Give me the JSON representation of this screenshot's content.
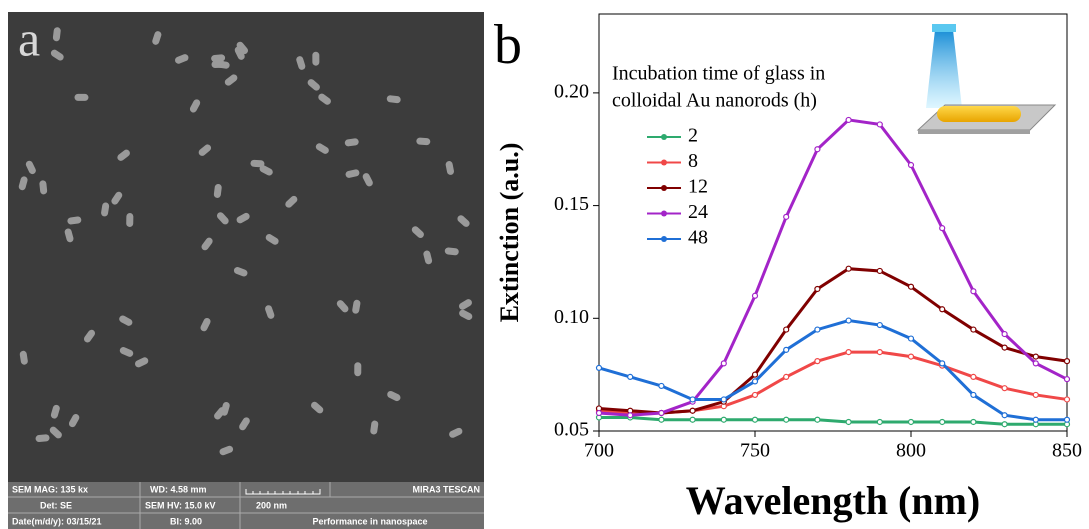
{
  "panel_labels": [
    "a",
    "b"
  ],
  "sem_info": [
    [
      "SEM MAG: 135 kx",
      "WD: 4.58 mm",
      "MIRA3 TESCAN"
    ],
    [
      "Det: SE",
      "SEM HV: 15.0 kV",
      "200 nm"
    ],
    [
      "Date(m/d/y): 03/15/21",
      "BI: 9.00",
      "Performance in nanospace"
    ]
  ],
  "chart_data": {
    "type": "line",
    "x_label": "Wavelength (nm)",
    "y_label": "Extinction (a.u.)",
    "legend_title": [
      "Incubation time of glass in",
      "colloidal Au nanorods (h)"
    ],
    "x": [
      700,
      710,
      720,
      730,
      740,
      750,
      760,
      770,
      780,
      790,
      800,
      810,
      820,
      830,
      840,
      850
    ],
    "series": [
      {
        "name": "2",
        "color": "#2eaa6e",
        "values": [
          0.056,
          0.056,
          0.055,
          0.055,
          0.055,
          0.055,
          0.055,
          0.055,
          0.054,
          0.054,
          0.054,
          0.054,
          0.054,
          0.053,
          0.053,
          0.053
        ]
      },
      {
        "name": "8",
        "color": "#f04848",
        "values": [
          0.059,
          0.058,
          0.058,
          0.059,
          0.061,
          0.066,
          0.074,
          0.081,
          0.085,
          0.085,
          0.083,
          0.079,
          0.074,
          0.069,
          0.066,
          0.064
        ]
      },
      {
        "name": "12",
        "color": "#800000",
        "values": [
          0.06,
          0.059,
          0.058,
          0.059,
          0.063,
          0.075,
          0.095,
          0.113,
          0.122,
          0.121,
          0.114,
          0.104,
          0.095,
          0.087,
          0.083,
          0.081
        ]
      },
      {
        "name": "24",
        "color": "#a324c8",
        "values": [
          0.058,
          0.057,
          0.058,
          0.063,
          0.08,
          0.11,
          0.145,
          0.175,
          0.188,
          0.186,
          0.168,
          0.14,
          0.112,
          0.093,
          0.08,
          0.073
        ]
      },
      {
        "name": "48",
        "color": "#1f6fd6",
        "values": [
          0.078,
          0.074,
          0.07,
          0.064,
          0.064,
          0.072,
          0.086,
          0.095,
          0.099,
          0.097,
          0.091,
          0.08,
          0.066,
          0.057,
          0.055,
          0.055
        ]
      }
    ],
    "xlim": [
      700,
      850
    ],
    "xticks": [
      700,
      750,
      800,
      850
    ],
    "ylim": [
      0.05,
      0.235
    ],
    "yticks": [
      0.05,
      {
        "value": 0.1,
        "label": "0.10"
      },
      0.15,
      {
        "value": 0.2,
        "label": "0.20"
      }
    ],
    "grid": false,
    "legend": "upper left"
  }
}
